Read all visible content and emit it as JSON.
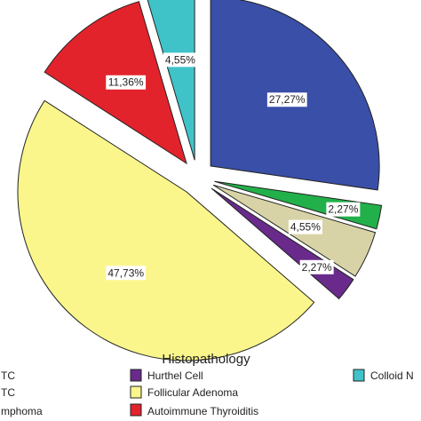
{
  "chart_data": {
    "type": "pie",
    "legend_title": "Histopathology",
    "legend_position": "bottom",
    "slices": [
      {
        "name": "",
        "value": 27.27,
        "label": "27,27%",
        "color": "#3A4FA8"
      },
      {
        "name": "",
        "value": 2.27,
        "label": "2,27%",
        "color": "#22B04A"
      },
      {
        "name": "",
        "value": 4.55,
        "label": "4,55%",
        "color": "#D8D3A6"
      },
      {
        "name": "Hurthel Cell",
        "value": 2.27,
        "label": "2,27%",
        "color": "#6A2A8C"
      },
      {
        "name": "Follicular Adenoma",
        "value": 47.73,
        "label": "47,73%",
        "color": "#FAF68C"
      },
      {
        "name": "Autoimmune Thyroiditis",
        "value": 11.36,
        "label": "11,36%",
        "color": "#E3232C"
      },
      {
        "name": "Colloid N",
        "value": 4.55,
        "label": "4,55%",
        "color": "#3FC3C8"
      }
    ],
    "legend_left_fragments": [
      "TC",
      "TC",
      "mphoma"
    ]
  }
}
